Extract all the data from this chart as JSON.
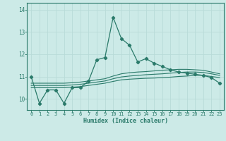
{
  "xlabel": "Humidex (Indice chaleur)",
  "bg_color": "#cceae7",
  "grid_color": "#b8dbd8",
  "line_color": "#2a7a6a",
  "xlim": [
    -0.5,
    23.5
  ],
  "ylim": [
    9.5,
    14.3
  ],
  "xticks": [
    0,
    1,
    2,
    3,
    4,
    5,
    6,
    7,
    8,
    9,
    10,
    11,
    12,
    13,
    14,
    15,
    16,
    17,
    18,
    19,
    20,
    21,
    22,
    23
  ],
  "yticks": [
    10,
    11,
    12,
    13,
    14
  ],
  "line1_x": [
    0,
    1,
    2,
    3,
    4,
    5,
    6,
    7,
    8,
    9,
    10,
    11,
    12,
    13,
    14,
    15,
    16,
    17,
    18,
    19,
    20,
    21,
    22,
    23
  ],
  "line1_y": [
    11.0,
    9.8,
    10.4,
    10.4,
    9.8,
    10.5,
    10.5,
    10.8,
    11.75,
    11.85,
    13.65,
    12.7,
    12.4,
    11.65,
    11.8,
    11.6,
    11.45,
    11.3,
    11.2,
    11.15,
    11.1,
    11.05,
    10.95,
    10.7
  ],
  "line2_x": [
    0,
    1,
    2,
    3,
    4,
    5,
    6,
    7,
    8,
    9,
    10,
    11,
    12,
    13,
    14,
    15,
    16,
    17,
    18,
    19,
    20,
    21,
    22,
    23
  ],
  "line2_y": [
    10.5,
    10.5,
    10.5,
    10.5,
    10.5,
    10.52,
    10.55,
    10.6,
    10.65,
    10.7,
    10.78,
    10.85,
    10.88,
    10.9,
    10.92,
    10.93,
    10.95,
    10.97,
    11.0,
    11.02,
    11.05,
    11.05,
    11.0,
    10.95
  ],
  "line3_x": [
    0,
    1,
    2,
    3,
    4,
    5,
    6,
    7,
    8,
    9,
    10,
    11,
    12,
    13,
    14,
    15,
    16,
    17,
    18,
    19,
    20,
    21,
    22,
    23
  ],
  "line3_y": [
    10.6,
    10.6,
    10.6,
    10.6,
    10.6,
    10.62,
    10.65,
    10.7,
    10.75,
    10.8,
    10.9,
    10.98,
    11.02,
    11.05,
    11.08,
    11.1,
    11.12,
    11.15,
    11.18,
    11.2,
    11.2,
    11.18,
    11.12,
    11.05
  ],
  "line4_x": [
    0,
    1,
    2,
    3,
    4,
    5,
    6,
    7,
    8,
    9,
    10,
    11,
    12,
    13,
    14,
    15,
    16,
    17,
    18,
    19,
    20,
    21,
    22,
    23
  ],
  "line4_y": [
    10.7,
    10.7,
    10.7,
    10.7,
    10.7,
    10.72,
    10.75,
    10.8,
    10.85,
    10.9,
    11.02,
    11.12,
    11.17,
    11.2,
    11.22,
    11.25,
    11.28,
    11.3,
    11.32,
    11.32,
    11.3,
    11.28,
    11.2,
    11.12
  ]
}
